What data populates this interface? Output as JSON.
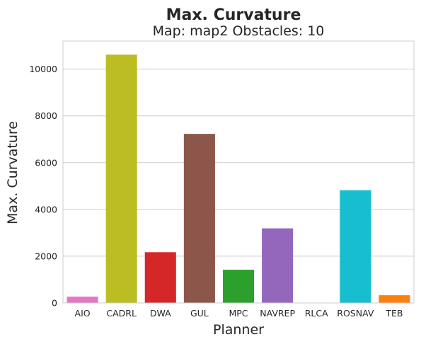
{
  "chart_data": {
    "type": "bar",
    "suptitle": "Max. Curvature",
    "title": "Map: map2 Obstacles: 10",
    "xlabel": "Planner",
    "ylabel": "Max. Curvature",
    "categories": [
      "AIO",
      "CADRL",
      "DWA",
      "GUL",
      "MPC",
      "NAVREP",
      "RLCA",
      "ROSNAV",
      "TEB"
    ],
    "values": [
      270,
      10620,
      2170,
      7230,
      1420,
      3190,
      0,
      4820,
      330
    ],
    "colors": [
      "#e377c2",
      "#bcbd22",
      "#d62728",
      "#8c564b",
      "#2ca02c",
      "#9467bd",
      "#7f7f7f",
      "#17becf",
      "#ff7f0e"
    ],
    "ylim": [
      0,
      11200
    ],
    "yticks": [
      0,
      2000,
      4000,
      6000,
      8000,
      10000
    ],
    "grid": true,
    "style": "seaborn-whitegrid"
  }
}
